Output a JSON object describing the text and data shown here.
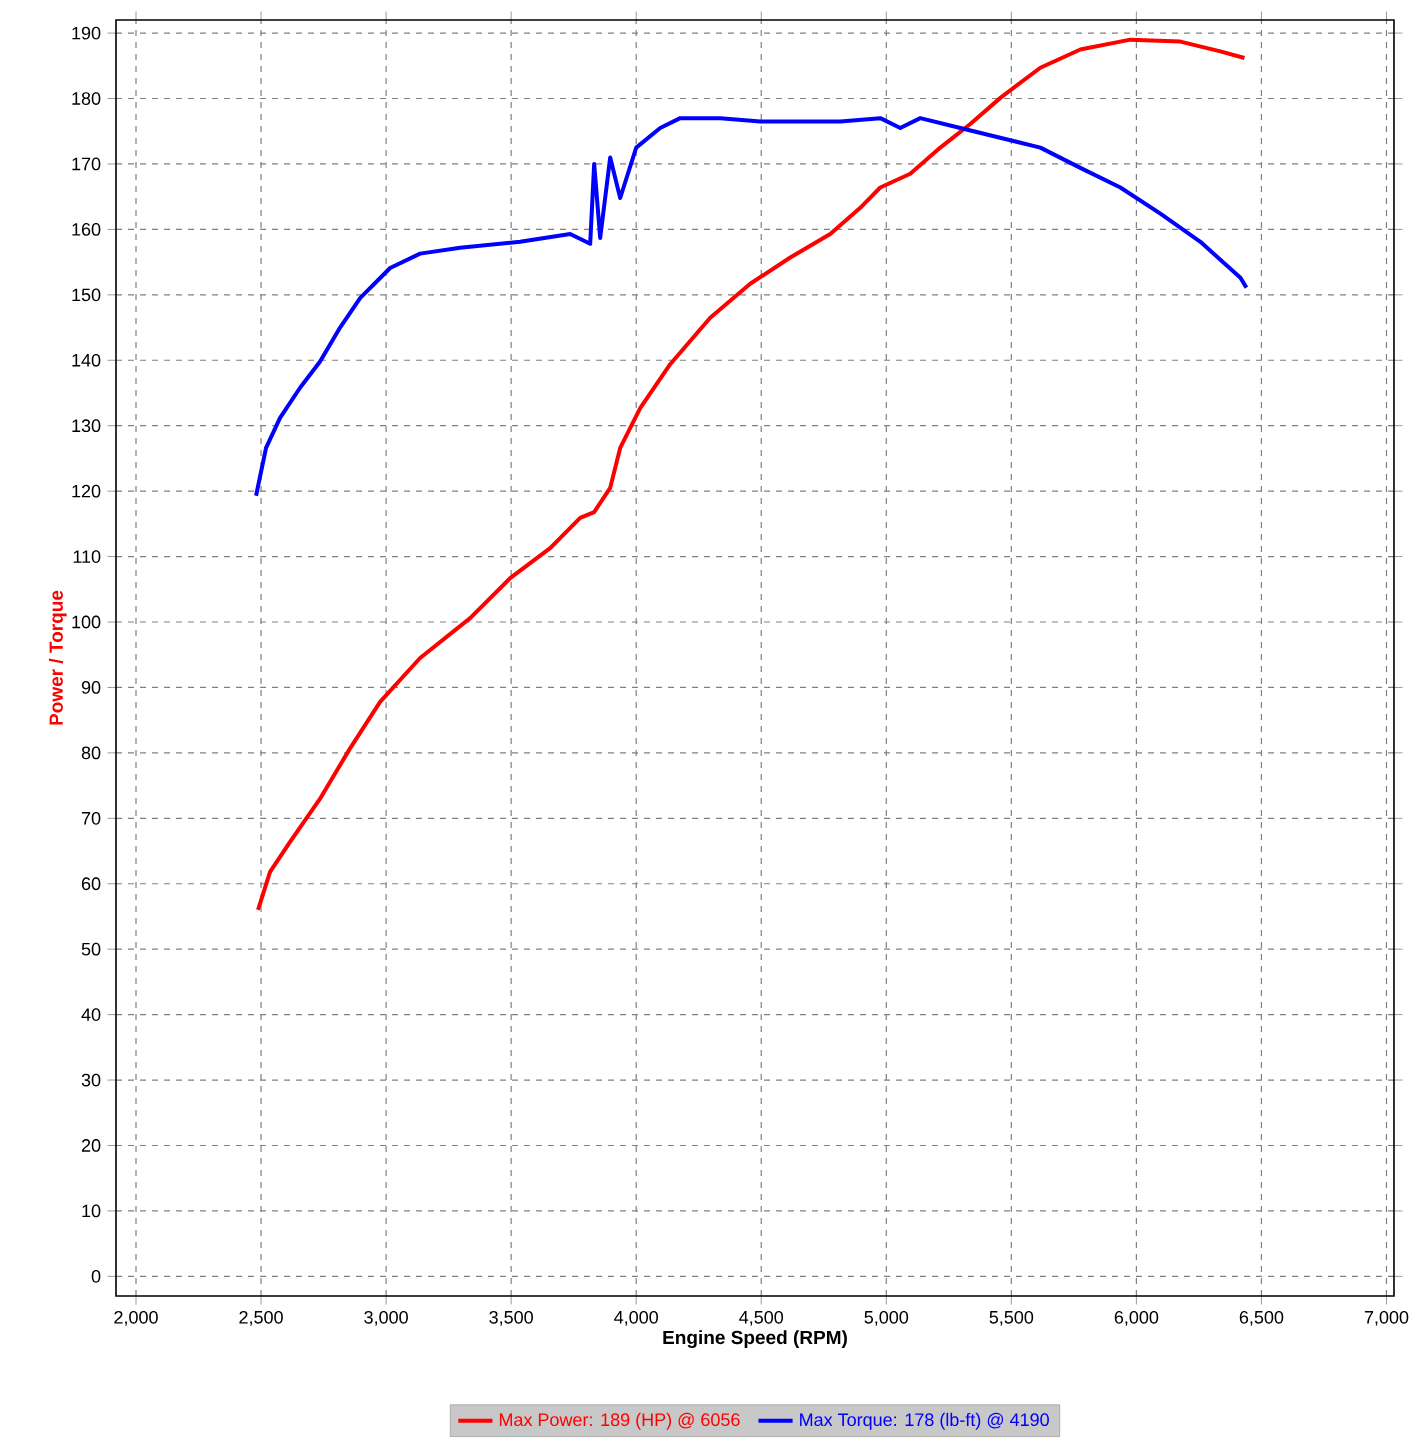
{
  "chart_data": {
    "type": "line",
    "xlabel": "Engine Speed (RPM)",
    "ylabel": "Power / Torque",
    "xlim": [
      1920,
      7030
    ],
    "ylim": [
      -3,
      192
    ],
    "xticks": [
      {
        "value": 2000,
        "label": "2,000"
      },
      {
        "value": 2500,
        "label": "2,500"
      },
      {
        "value": 3000,
        "label": "3,000"
      },
      {
        "value": 3500,
        "label": "3,500"
      },
      {
        "value": 4000,
        "label": "4,000"
      },
      {
        "value": 4500,
        "label": "4,500"
      },
      {
        "value": 5000,
        "label": "5,000"
      },
      {
        "value": 5500,
        "label": "5,500"
      },
      {
        "value": 6000,
        "label": "6,000"
      },
      {
        "value": 6500,
        "label": "6,500"
      },
      {
        "value": 7000,
        "label": "7,000"
      }
    ],
    "yticks": [
      0,
      10,
      20,
      30,
      40,
      50,
      60,
      70,
      80,
      90,
      100,
      110,
      120,
      130,
      140,
      150,
      160,
      170,
      180,
      190
    ],
    "grid": true,
    "legend": "bottom",
    "marker": "none",
    "line_style": "solid",
    "series": [
      {
        "name": "Max Power: 189 (HP) @ 6056",
        "color": "#ff0000",
        "x": [
          2488,
          2536,
          2616,
          2736,
          2856,
          2976,
          3136,
          3336,
          3496,
          3656,
          3776,
          3832,
          3896,
          3936,
          4016,
          4136,
          4296,
          4456,
          4616,
          4776,
          4896,
          4976,
          5096,
          5216,
          5336,
          5456,
          5616,
          5776,
          5976,
          6176,
          6336,
          6432
        ],
        "values": [
          56,
          61.8,
          66.4,
          73,
          80.7,
          87.8,
          94.5,
          100.6,
          106.7,
          111.3,
          115.9,
          116.8,
          120.5,
          126.6,
          132.7,
          139.4,
          146.5,
          151.7,
          155.7,
          159.3,
          163.3,
          166.4,
          168.5,
          172.5,
          176.1,
          180.1,
          184.7,
          187.5,
          189,
          188.7,
          187.2,
          186.2
        ]
      },
      {
        "name": "Max Torque: 178 (lb-ft) @ 4190",
        "color": "#0000ff",
        "x": [
          2480,
          2520,
          2576,
          2656,
          2736,
          2816,
          2896,
          3016,
          3136,
          3296,
          3536,
          3736,
          3816,
          3832,
          3856,
          3896,
          3936,
          4000,
          4096,
          4176,
          4336,
          4496,
          4656,
          4816,
          4976,
          5056,
          5136,
          5296,
          5456,
          5616,
          5776,
          5936,
          6096,
          6256,
          6416,
          6440
        ],
        "values": [
          119.3,
          126.6,
          131.2,
          135.8,
          139.8,
          145,
          149.5,
          154.1,
          156.3,
          157.2,
          158.1,
          159.3,
          157.8,
          170,
          158.7,
          171,
          164.8,
          172.5,
          175.5,
          177,
          177,
          176.5,
          176.5,
          176.5,
          177,
          175.5,
          177,
          175.5,
          174,
          172.5,
          169.4,
          166.4,
          162.4,
          158.1,
          152.6,
          151.1
        ]
      }
    ]
  }
}
